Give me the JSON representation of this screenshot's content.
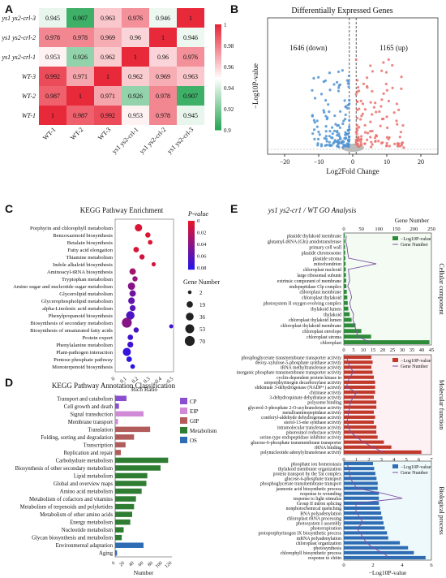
{
  "panels": {
    "A": "A",
    "B": "B",
    "C": "C",
    "D": "D",
    "E": "E"
  },
  "colors": {
    "red": "#e8293a",
    "green": "#1ea34f",
    "blue_dot": "#4f93d1",
    "red_dot": "#e8736e",
    "bar_green": "#2e8b3a",
    "bar_red": "#c0392b",
    "bar_blue": "#2e6db4",
    "line": "#7b4fa5",
    "cp": "#8a4fd1",
    "eip": "#d08ad6",
    "gip": "#b15b5b",
    "metab": "#2e7d32",
    "os": "#2e6db4"
  },
  "heatmap": {
    "rows": [
      "ys1 ys2-crl-3",
      "ys1 ys2-crl-2",
      "ys1 ys2-crl-1",
      "WT-3",
      "WT-2",
      "WT-1"
    ],
    "cols": [
      "WT-1",
      "WT-2",
      "WT-3",
      "ys1 ys2-crl-1",
      "ys1 ys2-crl-2",
      "ys1 ys2-crl-3"
    ],
    "values": [
      [
        0.945,
        0.907,
        0.963,
        0.976,
        0.946,
        1
      ],
      [
        0.978,
        0.978,
        0.969,
        0.96,
        1,
        0.946
      ],
      [
        0.953,
        0.926,
        0.962,
        1,
        0.96,
        0.976
      ],
      [
        0.992,
        0.971,
        1,
        0.962,
        0.969,
        0.963
      ],
      [
        0.987,
        1,
        0.971,
        0.926,
        0.978,
        0.907
      ],
      [
        1,
        0.987,
        0.992,
        0.953,
        0.978,
        0.945
      ]
    ],
    "legend_ticks": [
      "1",
      "0.98",
      "0.96",
      "0.94",
      "0.92",
      "0.9"
    ]
  },
  "volcano": {
    "title": "Differentially Expressed Genes",
    "down_label": "1646 (down)",
    "up_label": "1165 (up)",
    "xlabel": "Log2Fold Change",
    "ylabel": "−Log10P-value",
    "xticks": [
      "−20",
      "−10",
      "0",
      "10",
      "20"
    ]
  },
  "kegg_enrichment": {
    "title": "KEGG Pathway Enrichment",
    "pathways": [
      {
        "name": "Porphyrin and chlorophyll metabolism",
        "ratio": 0.2,
        "p": 0.005,
        "n": 30
      },
      {
        "name": "Benzoxazinoid biosynthesis",
        "ratio": 0.28,
        "p": 0.003,
        "n": 10
      },
      {
        "name": "Betalain biosynthesis",
        "ratio": 0.3,
        "p": 0.004,
        "n": 6
      },
      {
        "name": "Fatty acid elongation",
        "ratio": 0.18,
        "p": 0.006,
        "n": 12
      },
      {
        "name": "Thiamine metabolism",
        "ratio": 0.23,
        "p": 0.01,
        "n": 10
      },
      {
        "name": "Indole alkaloid biosynthesis",
        "ratio": 0.33,
        "p": 0.008,
        "n": 4
      },
      {
        "name": "Aminoacyl-tRNA biosynthesis",
        "ratio": 0.15,
        "p": 0.03,
        "n": 20
      },
      {
        "name": "Tryptophan metabolism",
        "ratio": 0.17,
        "p": 0.035,
        "n": 10
      },
      {
        "name": "Amino sugar and nucleotide sugar metabolism",
        "ratio": 0.14,
        "p": 0.04,
        "n": 30
      },
      {
        "name": "Glycerolipid metabolism",
        "ratio": 0.15,
        "p": 0.05,
        "n": 20
      },
      {
        "name": "Glycerophospholipid metabolism",
        "ratio": 0.14,
        "p": 0.055,
        "n": 22
      },
      {
        "name": "alpha-Linolenic acid metabolism",
        "ratio": 0.15,
        "p": 0.06,
        "n": 15
      },
      {
        "name": "Phenylpropanoid biosynthesis",
        "ratio": 0.13,
        "p": 0.065,
        "n": 45
      },
      {
        "name": "Biosynthesis of secondary metabolism",
        "ratio": 0.1,
        "p": 0.04,
        "n": 70
      },
      {
        "name": "Biosynthesis of unsaturated fatty acids",
        "ratio": 0.18,
        "p": 0.065,
        "n": 10
      },
      {
        "name": "Protein export",
        "ratio": 0.13,
        "p": 0.07,
        "n": 12
      },
      {
        "name": "Phenylalanine metabolism",
        "ratio": 0.13,
        "p": 0.07,
        "n": 15
      },
      {
        "name": "Plant-pathogen interaction",
        "ratio": 0.1,
        "p": 0.075,
        "n": 40
      },
      {
        "name": "Pentose phosphate pathway",
        "ratio": 0.12,
        "p": 0.078,
        "n": 12
      },
      {
        "name": "Monoterpenoid biosynthesis",
        "ratio": 0.15,
        "p": 0.08,
        "n": 6
      }
    ],
    "extra_point": {
      "ratio": 0.48,
      "p": 0.07,
      "n": 6
    },
    "xlabel": "Rich Ratio",
    "xticks": [
      "0",
      "0.1",
      "0.2",
      "0.3",
      "0.4",
      "0.5"
    ],
    "p_legend_title": "P-value",
    "p_ticks": [
      "0",
      "0.02",
      "0.04",
      "0.06",
      "0.08"
    ],
    "size_legend_title": "Gene Number",
    "size_ticks": [
      "2",
      "19",
      "36",
      "53",
      "70"
    ]
  },
  "kegg_annotation": {
    "title": "KEGG Pathway Annotation Classification",
    "xlabel": "Number",
    "xticks": [
      "0",
      "20",
      "40",
      "60",
      "80",
      "100",
      "120"
    ],
    "legend": [
      "CP",
      "EIP",
      "GIP",
      "Metabolism",
      "OS"
    ],
    "items": [
      {
        "name": "Transport and catabolism",
        "n": 24,
        "cls": "CP"
      },
      {
        "name": "Cell growth and death",
        "n": 8,
        "cls": "CP"
      },
      {
        "name": "Signal transduction",
        "n": 60,
        "cls": "EIP"
      },
      {
        "name": "Membrane transport",
        "n": 6,
        "cls": "EIP"
      },
      {
        "name": "Translation",
        "n": 74,
        "cls": "GIP"
      },
      {
        "name": "Folding, sorting and degradation",
        "n": 40,
        "cls": "GIP"
      },
      {
        "name": "Transcription",
        "n": 22,
        "cls": "GIP"
      },
      {
        "name": "Replication and repair",
        "n": 12,
        "cls": "GIP"
      },
      {
        "name": "Carbohydrate metabolism",
        "n": 112,
        "cls": "Metabolism"
      },
      {
        "name": "Biosynthesis of other secondary metabolism",
        "n": 96,
        "cls": "Metabolism"
      },
      {
        "name": "Lipid metabolism",
        "n": 68,
        "cls": "Metabolism"
      },
      {
        "name": "Global and overview maps",
        "n": 66,
        "cls": "Metabolism"
      },
      {
        "name": "Amino acid metabolism",
        "n": 56,
        "cls": "Metabolism"
      },
      {
        "name": "Metabolism of cofactors and vitamins",
        "n": 44,
        "cls": "Metabolism"
      },
      {
        "name": "Metabolism of terpenoids and polyketides",
        "n": 40,
        "cls": "Metabolism"
      },
      {
        "name": "Metabolism of other amino acids",
        "n": 36,
        "cls": "Metabolism"
      },
      {
        "name": "Energy metabolism",
        "n": 32,
        "cls": "Metabolism"
      },
      {
        "name": "Nucleotide metabolism",
        "n": 18,
        "cls": "Metabolism"
      },
      {
        "name": "Glycan biosynthesis and metabolism",
        "n": 14,
        "cls": "Metabolism"
      },
      {
        "name": "Environmental adaptation",
        "n": 60,
        "cls": "OS"
      },
      {
        "name": "Aging",
        "n": 4,
        "cls": "OS"
      }
    ]
  },
  "go": {
    "title": "ys1 ys2-cr1 / WT GO Analysis",
    "gene_number_label": "Gene Number",
    "gene_ticks": [
      "0",
      "50",
      "100",
      "150",
      "200",
      "250"
    ],
    "legend_log": "−Log10P-value",
    "legend_gene": "Gene Number",
    "xlabel": "−Log10P-value",
    "cc": {
      "label": "Cellular component",
      "xticks": [
        "0",
        "5",
        "10",
        "15",
        "20",
        "25",
        "30",
        "35",
        "40",
        "45"
      ],
      "terms": [
        "plastide thylakoid membrane",
        "glutamyl-tRNA (Gln) amidotransferase",
        "primary cell wall",
        "plastide chromosome",
        "plastide stroma",
        "mitochondrion",
        "chloroplast nucleoid",
        "large ribosomal subunit",
        "extrinsic component of membrane",
        "endopeptidase Clp complex",
        "chloroplast membrane",
        "chloroplast thylakoid",
        "photosystem II oxygen evolving complex",
        "thylakoid lumen",
        "thylakoid",
        "chloroplast thylakoid lumen",
        "chloroplast thylakoid membrane",
        "chloroplast envelope",
        "chloroplast stroma",
        "chloroplast"
      ],
      "values": [
        0.5,
        0.5,
        0.6,
        0.7,
        0.8,
        0.9,
        1.0,
        1.1,
        1.2,
        1.3,
        1.5,
        1.8,
        2.0,
        2.3,
        3.0,
        4.0,
        6.0,
        9.0,
        14,
        44
      ],
      "genes": [
        8,
        6,
        10,
        12,
        15,
        100,
        14,
        16,
        18,
        12,
        20,
        24,
        18,
        22,
        30,
        28,
        34,
        38,
        44,
        80
      ]
    },
    "mf": {
      "label": "Molecular function",
      "xticks": [
        "0",
        "1",
        "2",
        "3",
        "4",
        "5",
        "6",
        "7"
      ],
      "terms": [
        "phosphoglycerate transmembrane transporter activity",
        "deoxy-xylulose-5-phosphate synthase activity",
        "tRNA methyltransferase activity",
        "inorganic phosphate transmembrane transporter activity",
        "cyclin-dependent protein kinase in",
        "uroporphyrinogen decarboxylase activity",
        "shikimate 3-dehydrogenase (NADP+) activity",
        "chitinase activity",
        "3-dehydroquinate dehydratase activity",
        "polysome binding",
        "glycerol-3-phosphate 2-O-acyltransferase activity",
        "metalloaminopeptidase activity",
        "coniferyl-aldehyde dehydrogenase activity",
        "sterol-13-ene synthase activity",
        "intramolecular transferase activity",
        "pinoresinol reductase activity",
        "serine-type endopeptidase inhibitor activity",
        "glucose-6-phosphate transmembrane transporter",
        "rRNA binding",
        "polynucleotide adenylyltransferase activity"
      ],
      "values": [
        2.2,
        2.3,
        2.2,
        2.3,
        2.4,
        2.5,
        2.5,
        2.5,
        2.4,
        2.6,
        2.6,
        2.4,
        2.5,
        2.4,
        2.6,
        2.6,
        2.7,
        3.2,
        3.8,
        6.2
      ],
      "genes": [
        10,
        12,
        20,
        30,
        18,
        12,
        8,
        40,
        30,
        20,
        18,
        15,
        12,
        10,
        15,
        20,
        40,
        60,
        90,
        120
      ]
    },
    "bp": {
      "label": "Biological process",
      "xticks": [
        "0",
        "2",
        "4",
        "6"
      ],
      "terms": [
        "phosphate ion homeostasis",
        "thylakoid membrane organization",
        "protein transport by the Tat complex",
        "glucose-6-phosphate transport",
        "phosphoglycerate transmembrane transport",
        "jasmonic acid biosynthetic process",
        "response to wounding",
        "response to light stimulus",
        "Group II intron splicing",
        "nonphotochemical quenching",
        "RNA polyadenylation",
        "chloroplast rRNA processing",
        "photosystem I assembly",
        "photorespiration",
        "protoporphyrinogen IX biosynthetic process",
        "mRNA polyadenylation",
        "chloroplast organization",
        "photosynthesis",
        "chlorophyll biosynthetic process",
        "response to chitin"
      ],
      "values": [
        2.5,
        2.6,
        2.7,
        2.8,
        2.9,
        2.9,
        3.0,
        3.0,
        3.0,
        3.1,
        3.2,
        3.3,
        3.4,
        3.5,
        3.7,
        3.8,
        4.8,
        5.5,
        6.0,
        7.0
      ],
      "genes": [
        10,
        15,
        18,
        20,
        30,
        40,
        120,
        180,
        40,
        35,
        40,
        50,
        60,
        40,
        50,
        60,
        70,
        90,
        120,
        140
      ]
    }
  }
}
